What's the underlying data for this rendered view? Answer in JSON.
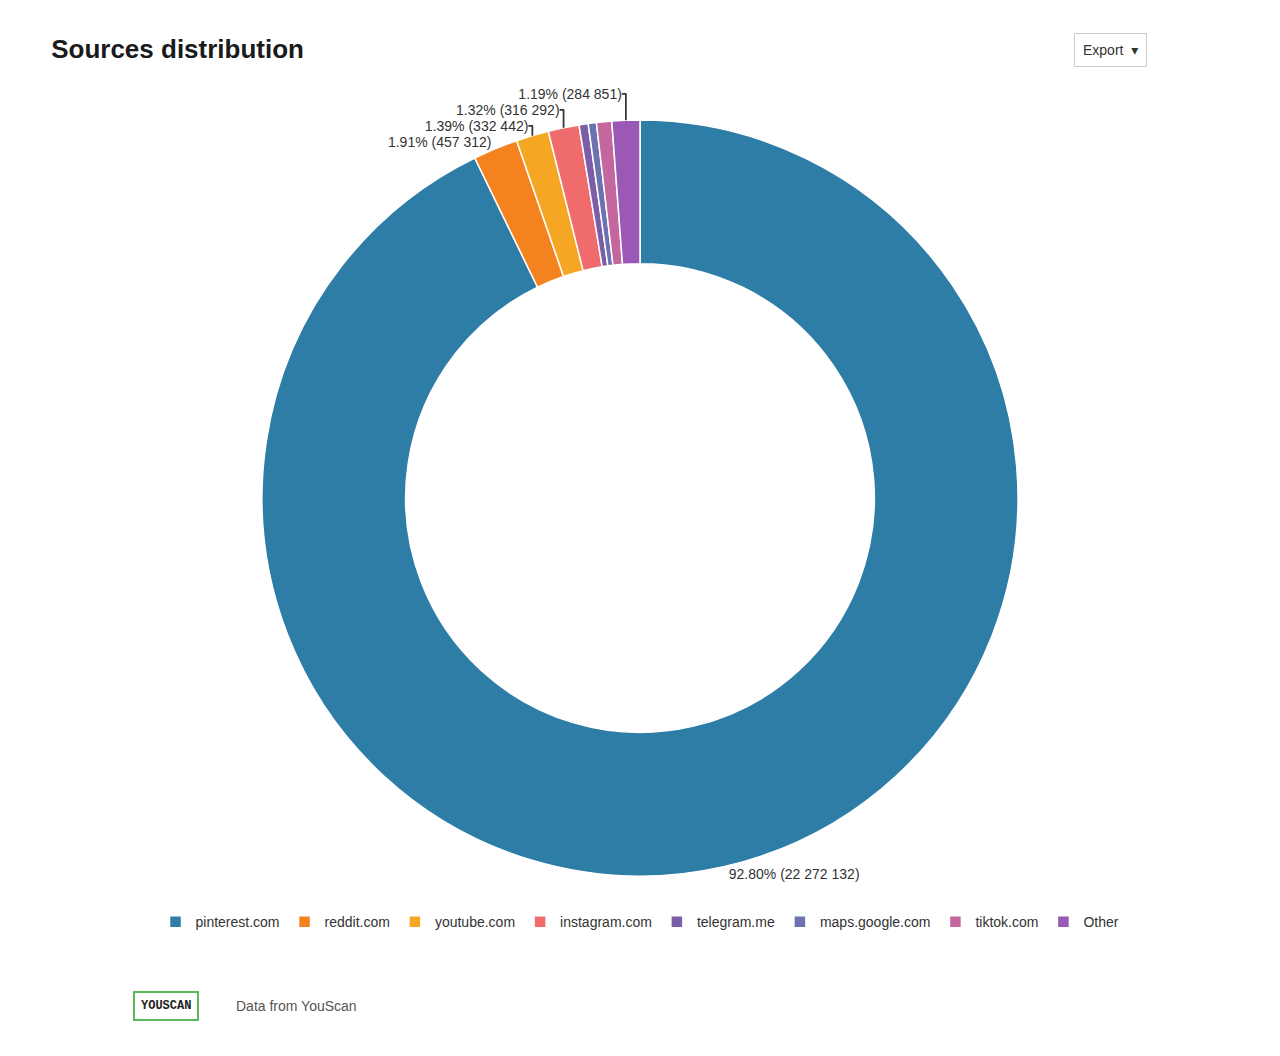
{
  "chart_data": {
    "type": "pie",
    "title": "Sources distribution",
    "categories": [
      "pinterest.com",
      "reddit.com",
      "youtube.com",
      "instagram.com",
      "telegram.me",
      "maps.google.com",
      "tiktok.com",
      "Other"
    ],
    "values": [
      92.8,
      1.91,
      1.39,
      1.32,
      0.39,
      0.35,
      0.65,
      1.19
    ],
    "value_labels": [
      "92.80% (22 272 132)",
      "1.91% (457 312)",
      "1.39% (332 442)",
      "1.32% (316 292)",
      null,
      null,
      null,
      "1.19% (284 851)"
    ],
    "colors": [
      "#2e7da6",
      "#f4821f",
      "#f5a623",
      "#f06b6b",
      "#7b5ea7",
      "#6c72b0",
      "#c4679e",
      "#9b59b6"
    ],
    "legend": "bottom",
    "annotations": [
      "Export  ▾",
      "YOUSCAN",
      "Data from YouScan"
    ]
  }
}
